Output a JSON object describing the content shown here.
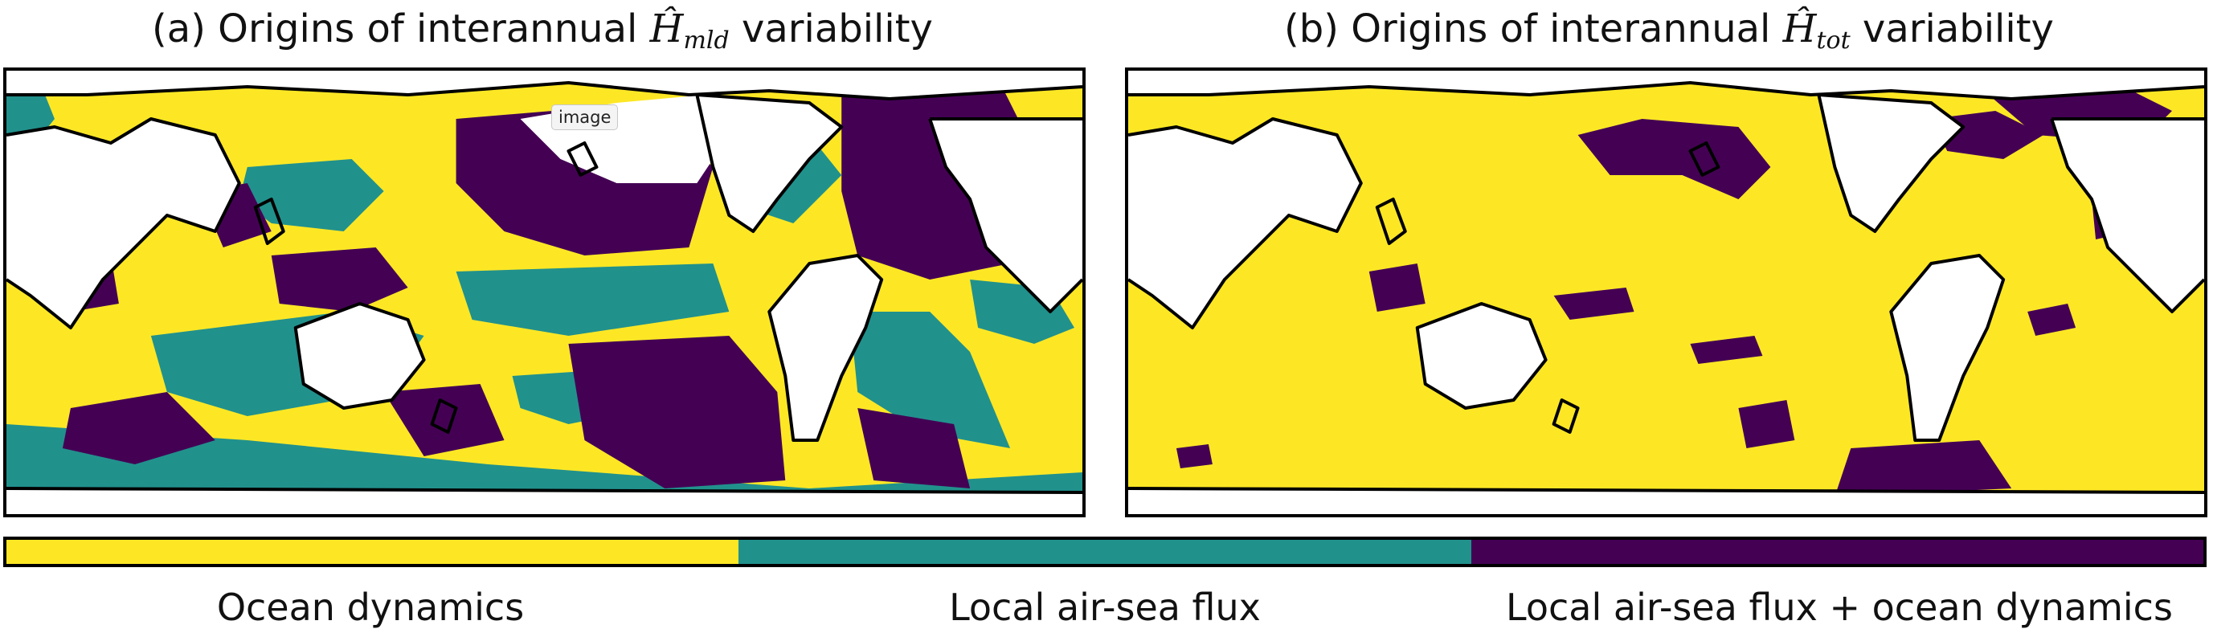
{
  "colors": {
    "ocean_dynamics": "#fde725",
    "local_air_sea_flux": "#21918c",
    "combined": "#440154",
    "land": "#ffffff",
    "coast": "#000000"
  },
  "panels": [
    {
      "id": "a",
      "title_prefix": "(a) Origins of interannual ",
      "symbol_base": "Ĥ",
      "symbol_sub": "mld",
      "title_suffix": " variability",
      "dominant_class": "mixed"
    },
    {
      "id": "b",
      "title_prefix": "(b) Origins of interannual ",
      "symbol_base": "Ĥ",
      "symbol_sub": "tot",
      "title_suffix": " variability",
      "dominant_class": "ocean_dynamics"
    }
  ],
  "tooltip": "image",
  "legend": {
    "labels": [
      "Ocean dynamics",
      "Local air-sea flux",
      "Local air-sea flux + ocean dynamics"
    ],
    "keys": [
      "ocean_dynamics",
      "local_air_sea_flux",
      "combined"
    ]
  }
}
